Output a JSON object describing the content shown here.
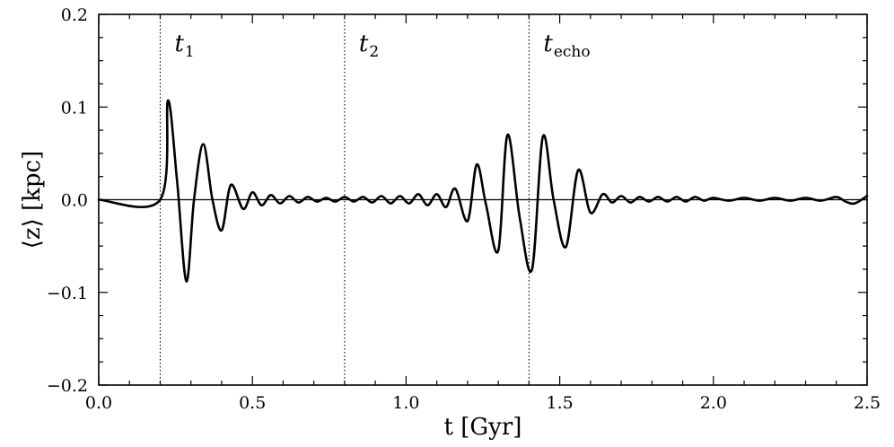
{
  "chart_data": {
    "type": "line",
    "title": "",
    "xlabel": "t [Gyr]",
    "ylabel": "⟨z⟩ [kpc]",
    "xlim": [
      0.0,
      2.5
    ],
    "ylim": [
      -0.2,
      0.2
    ],
    "grid": false,
    "x_ticks": [
      0.0,
      0.5,
      1.0,
      1.5,
      2.0,
      2.5
    ],
    "x_tick_labels": [
      "0.0",
      "0.5",
      "1.0",
      "1.5",
      "2.0",
      "2.5"
    ],
    "y_ticks": [
      -0.2,
      -0.1,
      0.0,
      0.1,
      0.2
    ],
    "y_tick_labels": [
      "−0.2",
      "−0.1",
      "0.0",
      "0.1",
      "0.2"
    ],
    "zero_line": true,
    "markers": [
      {
        "x": 0.2,
        "label": "t",
        "sub": "1"
      },
      {
        "x": 0.8,
        "label": "t",
        "sub": "2"
      },
      {
        "x": 1.4,
        "label": "t",
        "sub": "echo"
      }
    ],
    "series": [
      {
        "x": [
          0.0,
          0.2,
          0.225,
          0.255,
          0.285,
          0.31,
          0.34,
          0.37,
          0.4,
          0.43,
          0.47,
          0.5,
          0.53,
          0.56,
          0.59,
          0.62,
          0.65,
          0.68,
          0.71,
          0.74,
          0.77,
          0.8,
          0.83,
          0.86,
          0.89,
          0.92,
          0.95,
          0.98,
          1.01,
          1.04,
          1.07,
          1.1,
          1.13,
          1.16,
          1.2,
          1.23,
          1.26,
          1.3,
          1.33,
          1.37,
          1.41,
          1.445,
          1.48,
          1.52,
          1.56,
          1.6,
          1.64,
          1.67,
          1.7,
          1.73,
          1.76,
          1.79,
          1.82,
          1.85,
          1.88,
          1.91,
          1.94,
          1.97,
          2.0,
          2.05,
          2.1,
          2.15,
          2.2,
          2.25,
          2.3,
          2.35,
          2.4,
          2.43,
          2.46,
          2.5
        ],
        "y": [
          0.0,
          0.0,
          0.107,
          0.02,
          -0.088,
          0.0,
          0.06,
          0.0,
          -0.033,
          0.016,
          -0.01,
          0.008,
          -0.006,
          0.005,
          -0.004,
          0.004,
          -0.003,
          0.003,
          -0.002,
          0.002,
          -0.002,
          0.003,
          -0.002,
          0.003,
          -0.003,
          0.004,
          -0.004,
          0.004,
          -0.004,
          0.006,
          -0.006,
          0.006,
          -0.008,
          0.012,
          -0.023,
          0.038,
          -0.005,
          -0.055,
          0.07,
          -0.02,
          -0.075,
          0.068,
          0.0,
          -0.051,
          0.032,
          -0.014,
          0.006,
          -0.003,
          0.004,
          -0.003,
          0.003,
          -0.002,
          0.003,
          -0.002,
          0.003,
          -0.002,
          0.003,
          -0.001,
          0.002,
          -0.001,
          0.002,
          -0.001,
          0.002,
          -0.001,
          0.002,
          -0.001,
          0.003,
          -0.002,
          -0.004,
          0.004
        ]
      }
    ]
  }
}
